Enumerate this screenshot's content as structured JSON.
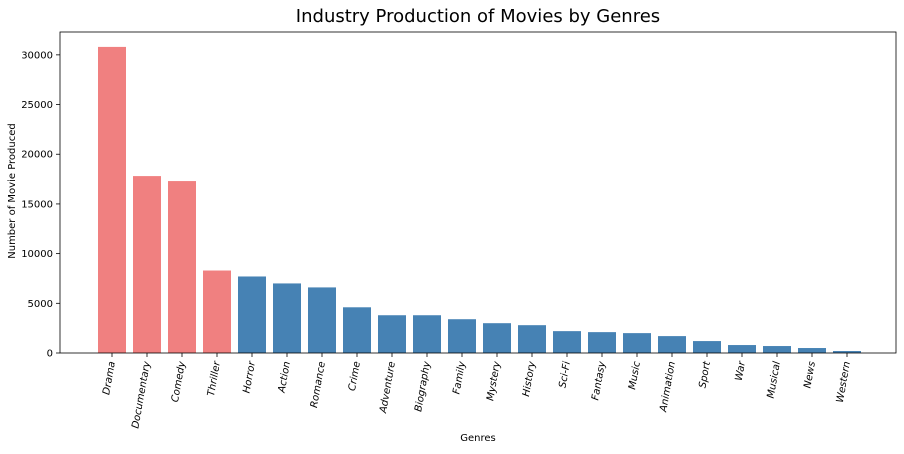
{
  "chart_data": {
    "type": "bar",
    "title": "Industry Production of Movies by Genres",
    "xlabel": "Genres",
    "ylabel": "Number of Movie Produced",
    "ylim": [
      0,
      32300
    ],
    "yticks": [
      0,
      5000,
      10000,
      15000,
      20000,
      25000,
      30000
    ],
    "ytick_labels": [
      "0",
      "5000",
      "10000",
      "15000",
      "20000",
      "25000",
      "30000"
    ],
    "categories": [
      "Drama",
      "Documentary",
      "Comedy",
      "Thriller",
      "Horror",
      "Action",
      "Romance",
      "Crime",
      "Adventure",
      "Biography",
      "Family",
      "Mystery",
      "History",
      "Sci-Fi",
      "Fantasy",
      "Music",
      "Animation",
      "Sport",
      "War",
      "Musical",
      "News",
      "Western"
    ],
    "values": [
      30800,
      17800,
      17300,
      8300,
      7700,
      7000,
      6600,
      4600,
      3800,
      3800,
      3400,
      3000,
      2800,
      2200,
      2100,
      2000,
      1700,
      1200,
      800,
      700,
      500,
      200
    ],
    "colors": [
      "#f08080",
      "#f08080",
      "#f08080",
      "#f08080",
      "#4682b4",
      "#4682b4",
      "#4682b4",
      "#4682b4",
      "#4682b4",
      "#4682b4",
      "#4682b4",
      "#4682b4",
      "#4682b4",
      "#4682b4",
      "#4682b4",
      "#4682b4",
      "#4682b4",
      "#4682b4",
      "#4682b4",
      "#4682b4",
      "#4682b4",
      "#4682b4"
    ],
    "highlight_color": "#f08080",
    "base_color": "#4682b4",
    "xtick_rotation_deg": -80,
    "grid": false,
    "legend": "none"
  }
}
